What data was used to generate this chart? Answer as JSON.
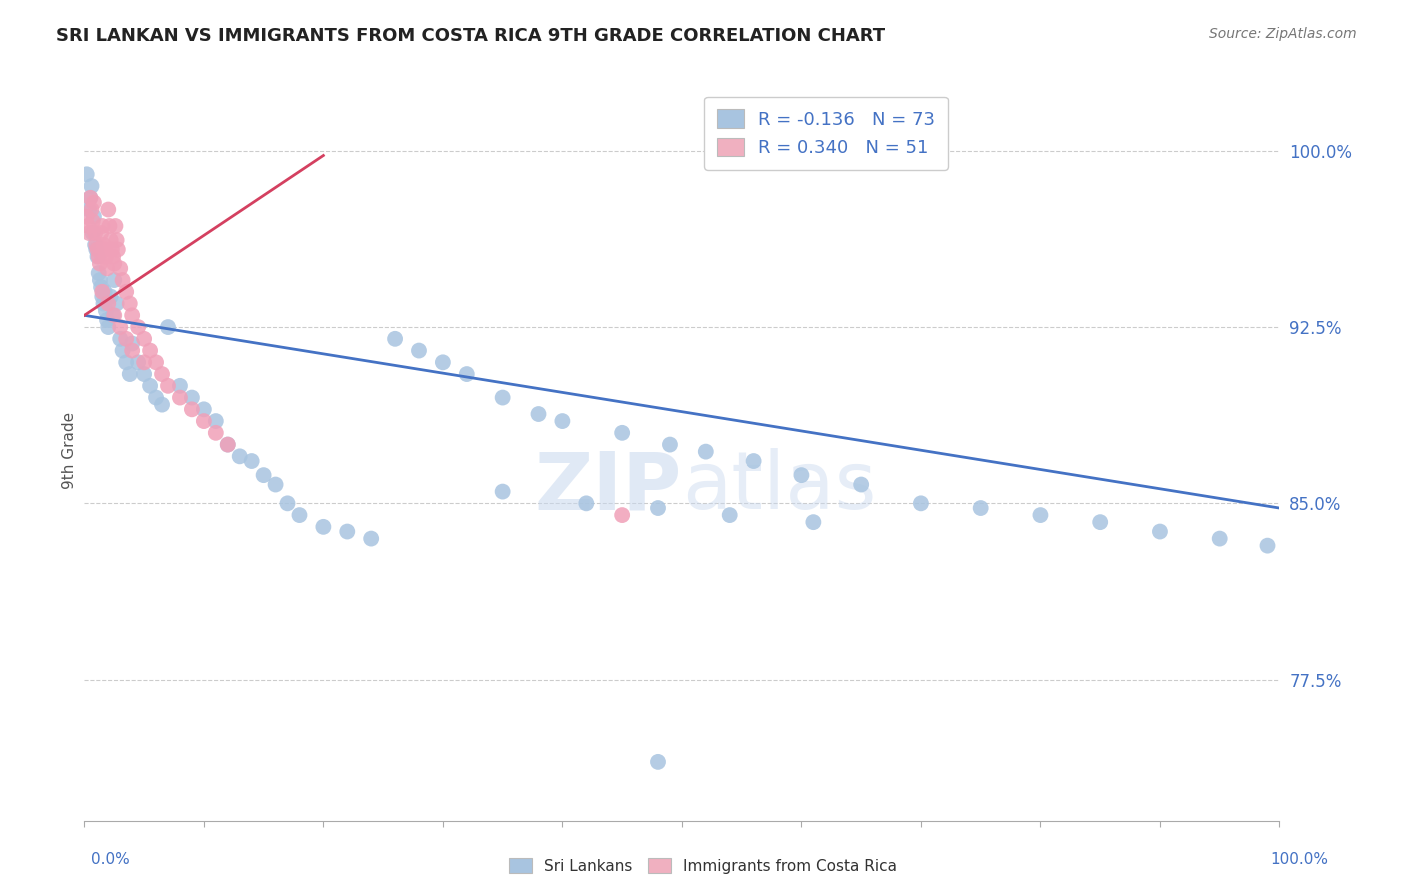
{
  "title": "SRI LANKAN VS IMMIGRANTS FROM COSTA RICA 9TH GRADE CORRELATION CHART",
  "source_text": "Source: ZipAtlas.com",
  "ylabel": "9th Grade",
  "y_ticks": [
    0.775,
    0.85,
    0.925,
    1.0
  ],
  "y_tick_labels": [
    "77.5%",
    "85.0%",
    "92.5%",
    "100.0%"
  ],
  "x_range": [
    0.0,
    1.0
  ],
  "y_range": [
    0.715,
    1.03
  ],
  "blue_color": "#a8c4e0",
  "pink_color": "#f0a0b8",
  "blue_line_color": "#4472c4",
  "pink_line_color": "#d44060",
  "legend_blue_fill": "#a8c4e0",
  "legend_pink_fill": "#f0b0c0",
  "R_blue": -0.136,
  "N_blue": 73,
  "R_pink": 0.34,
  "N_pink": 51,
  "blue_scatter_x": [
    0.002,
    0.004,
    0.005,
    0.006,
    0.007,
    0.008,
    0.009,
    0.01,
    0.011,
    0.012,
    0.013,
    0.014,
    0.015,
    0.016,
    0.017,
    0.018,
    0.019,
    0.02,
    0.022,
    0.024,
    0.025,
    0.027,
    0.03,
    0.032,
    0.035,
    0.038,
    0.04,
    0.045,
    0.05,
    0.055,
    0.06,
    0.065,
    0.07,
    0.08,
    0.09,
    0.1,
    0.11,
    0.12,
    0.13,
    0.14,
    0.15,
    0.16,
    0.17,
    0.18,
    0.2,
    0.22,
    0.24,
    0.26,
    0.28,
    0.3,
    0.32,
    0.35,
    0.38,
    0.4,
    0.45,
    0.49,
    0.52,
    0.56,
    0.6,
    0.65,
    0.7,
    0.75,
    0.8,
    0.85,
    0.9,
    0.95,
    0.99,
    0.35,
    0.42,
    0.48,
    0.54,
    0.61,
    0.48
  ],
  "blue_scatter_y": [
    0.99,
    0.975,
    0.98,
    0.985,
    0.965,
    0.972,
    0.96,
    0.958,
    0.955,
    0.948,
    0.945,
    0.942,
    0.938,
    0.935,
    0.94,
    0.932,
    0.928,
    0.925,
    0.938,
    0.93,
    0.945,
    0.935,
    0.92,
    0.915,
    0.91,
    0.905,
    0.918,
    0.91,
    0.905,
    0.9,
    0.895,
    0.892,
    0.925,
    0.9,
    0.895,
    0.89,
    0.885,
    0.875,
    0.87,
    0.868,
    0.862,
    0.858,
    0.85,
    0.845,
    0.84,
    0.838,
    0.835,
    0.92,
    0.915,
    0.91,
    0.905,
    0.895,
    0.888,
    0.885,
    0.88,
    0.875,
    0.872,
    0.868,
    0.862,
    0.858,
    0.85,
    0.848,
    0.845,
    0.842,
    0.838,
    0.835,
    0.832,
    0.855,
    0.85,
    0.848,
    0.845,
    0.842,
    0.74
  ],
  "pink_scatter_x": [
    0.002,
    0.003,
    0.004,
    0.005,
    0.006,
    0.007,
    0.008,
    0.009,
    0.01,
    0.011,
    0.012,
    0.013,
    0.014,
    0.015,
    0.016,
    0.017,
    0.018,
    0.019,
    0.02,
    0.021,
    0.022,
    0.023,
    0.024,
    0.025,
    0.026,
    0.027,
    0.028,
    0.03,
    0.032,
    0.035,
    0.038,
    0.04,
    0.045,
    0.05,
    0.055,
    0.06,
    0.065,
    0.07,
    0.08,
    0.09,
    0.1,
    0.11,
    0.12,
    0.015,
    0.02,
    0.025,
    0.03,
    0.035,
    0.04,
    0.05,
    0.45
  ],
  "pink_scatter_y": [
    0.972,
    0.968,
    0.965,
    0.98,
    0.975,
    0.97,
    0.978,
    0.965,
    0.96,
    0.958,
    0.955,
    0.952,
    0.965,
    0.968,
    0.96,
    0.958,
    0.955,
    0.95,
    0.975,
    0.968,
    0.962,
    0.958,
    0.955,
    0.952,
    0.968,
    0.962,
    0.958,
    0.95,
    0.945,
    0.94,
    0.935,
    0.93,
    0.925,
    0.92,
    0.915,
    0.91,
    0.905,
    0.9,
    0.895,
    0.89,
    0.885,
    0.88,
    0.875,
    0.94,
    0.935,
    0.93,
    0.925,
    0.92,
    0.915,
    0.91,
    0.845
  ],
  "blue_line_x": [
    0.0,
    1.0
  ],
  "blue_line_y_start": 0.93,
  "blue_line_y_end": 0.848,
  "pink_line_x": [
    0.0,
    0.2
  ],
  "pink_line_y_start": 0.93,
  "pink_line_y_end": 0.998,
  "watermark_part1": "ZIP",
  "watermark_part2": "atlas",
  "grid_color": "#cccccc",
  "grid_style": "--",
  "background_color": "#ffffff",
  "title_fontsize": 13,
  "axis_label_color": "#4472c4",
  "tick_label_color": "#4472c4"
}
